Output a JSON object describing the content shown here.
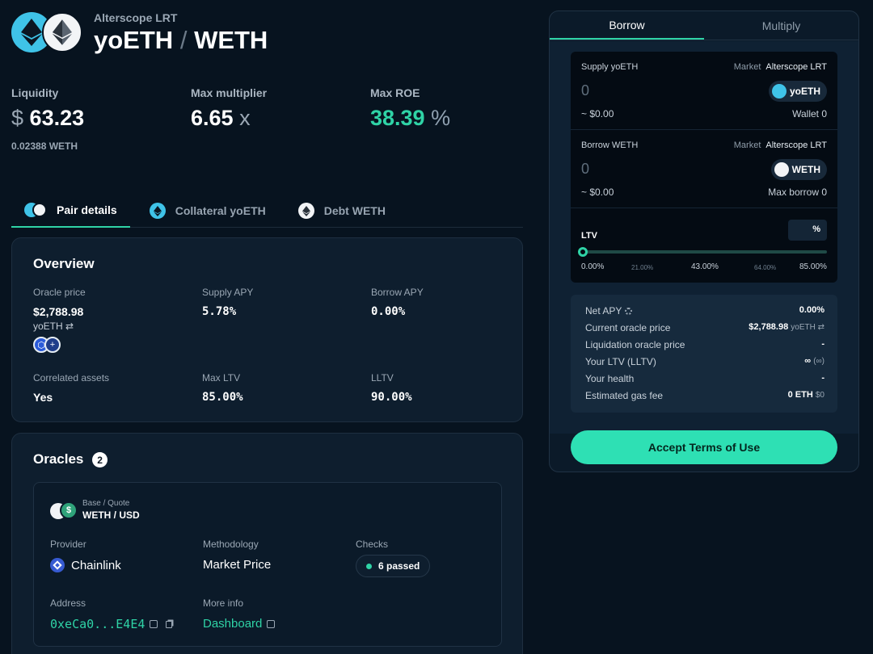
{
  "header": {
    "market_name": "Alterscope LRT",
    "base": "yoETH",
    "slash": "/",
    "quote": "WETH"
  },
  "stats": [
    {
      "label": "Liquidity",
      "prefix": "$",
      "value": "63.23",
      "suffix": "",
      "sub": "0.02388 WETH"
    },
    {
      "label": "Max multiplier",
      "prefix": "",
      "value": "6.65",
      "suffix": "x",
      "sub": ""
    },
    {
      "label": "Max ROE",
      "prefix": "",
      "value": "38.39",
      "suffix": "%",
      "sub": ""
    }
  ],
  "tabs": [
    {
      "label": "Pair details",
      "active": true
    },
    {
      "label": "Collateral yoETH",
      "active": false
    },
    {
      "label": "Debt WETH",
      "active": false
    }
  ],
  "overview": {
    "title": "Overview",
    "oracle_price_label": "Oracle price",
    "oracle_price_value": "$2,788.98",
    "oracle_price_unit": "yoETH ⇄",
    "supply_apy_label": "Supply APY",
    "supply_apy_value": "5.78%",
    "borrow_apy_label": "Borrow APY",
    "borrow_apy_value": "0.00%",
    "correlated_label": "Correlated assets",
    "correlated_value": "Yes",
    "max_ltv_label": "Max LTV",
    "max_ltv_value": "85.00%",
    "lltv_label": "LLTV",
    "lltv_value": "90.00%"
  },
  "oracles": {
    "title": "Oracles",
    "count": "2",
    "base_quote_label": "Base / Quote",
    "base_quote_value": "WETH / USD",
    "quote_symbol": "$",
    "provider_label": "Provider",
    "provider_value": "Chainlink",
    "methodology_label": "Methodology",
    "methodology_value": "Market Price",
    "checks_label": "Checks",
    "checks_value": "6 passed",
    "address_label": "Address",
    "address_value": "0xeCa0...E4E4",
    "more_info_label": "More info",
    "more_info_value": "Dashboard"
  },
  "panel": {
    "tabs": [
      {
        "label": "Borrow",
        "active": true
      },
      {
        "label": "Multiply",
        "active": false
      }
    ],
    "supply": {
      "label": "Supply yoETH",
      "market_label": "Market",
      "market_value": "Alterscope LRT",
      "amount": "0",
      "usd": "~ $0.00",
      "token": "yoETH",
      "right_info": "Wallet 0"
    },
    "borrow": {
      "label": "Borrow WETH",
      "market_label": "Market",
      "market_value": "Alterscope LRT",
      "amount": "0",
      "usd": "~ $0.00",
      "token": "WETH",
      "right_info": "Max borrow 0"
    },
    "ltv": {
      "label": "LTV",
      "unit": "%",
      "value": 0,
      "ticks_major": [
        "0.00%",
        "43.00%",
        "85.00%"
      ],
      "ticks_minor": [
        "21.00%",
        "64.00%"
      ]
    },
    "summary": [
      {
        "key": "Net APY",
        "value": "0.00%",
        "dim": ""
      },
      {
        "key": "Current oracle price",
        "value": "$2,788.98",
        "dim": "yoETH ⇄"
      },
      {
        "key": "Liquidation oracle price",
        "value": "-",
        "dim": ""
      },
      {
        "key": "Your LTV (LLTV)",
        "value": "∞",
        "dim": "(∞)"
      },
      {
        "key": "Your health",
        "value": "-",
        "dim": ""
      },
      {
        "key": "Estimated gas fee",
        "value": "0 ETH",
        "dim": "$0"
      }
    ],
    "cta": "Accept Terms of Use"
  },
  "colors": {
    "accent": "#2fd3a6",
    "background": "#07131f",
    "card": "#0e1e2e",
    "cta": "#2ee0b4"
  },
  "icons": [
    "yoeth-icon",
    "weth-icon",
    "usd-icon",
    "chainlink-icon",
    "external-link-icon",
    "copy-icon",
    "gear-icon",
    "swap-icon"
  ]
}
